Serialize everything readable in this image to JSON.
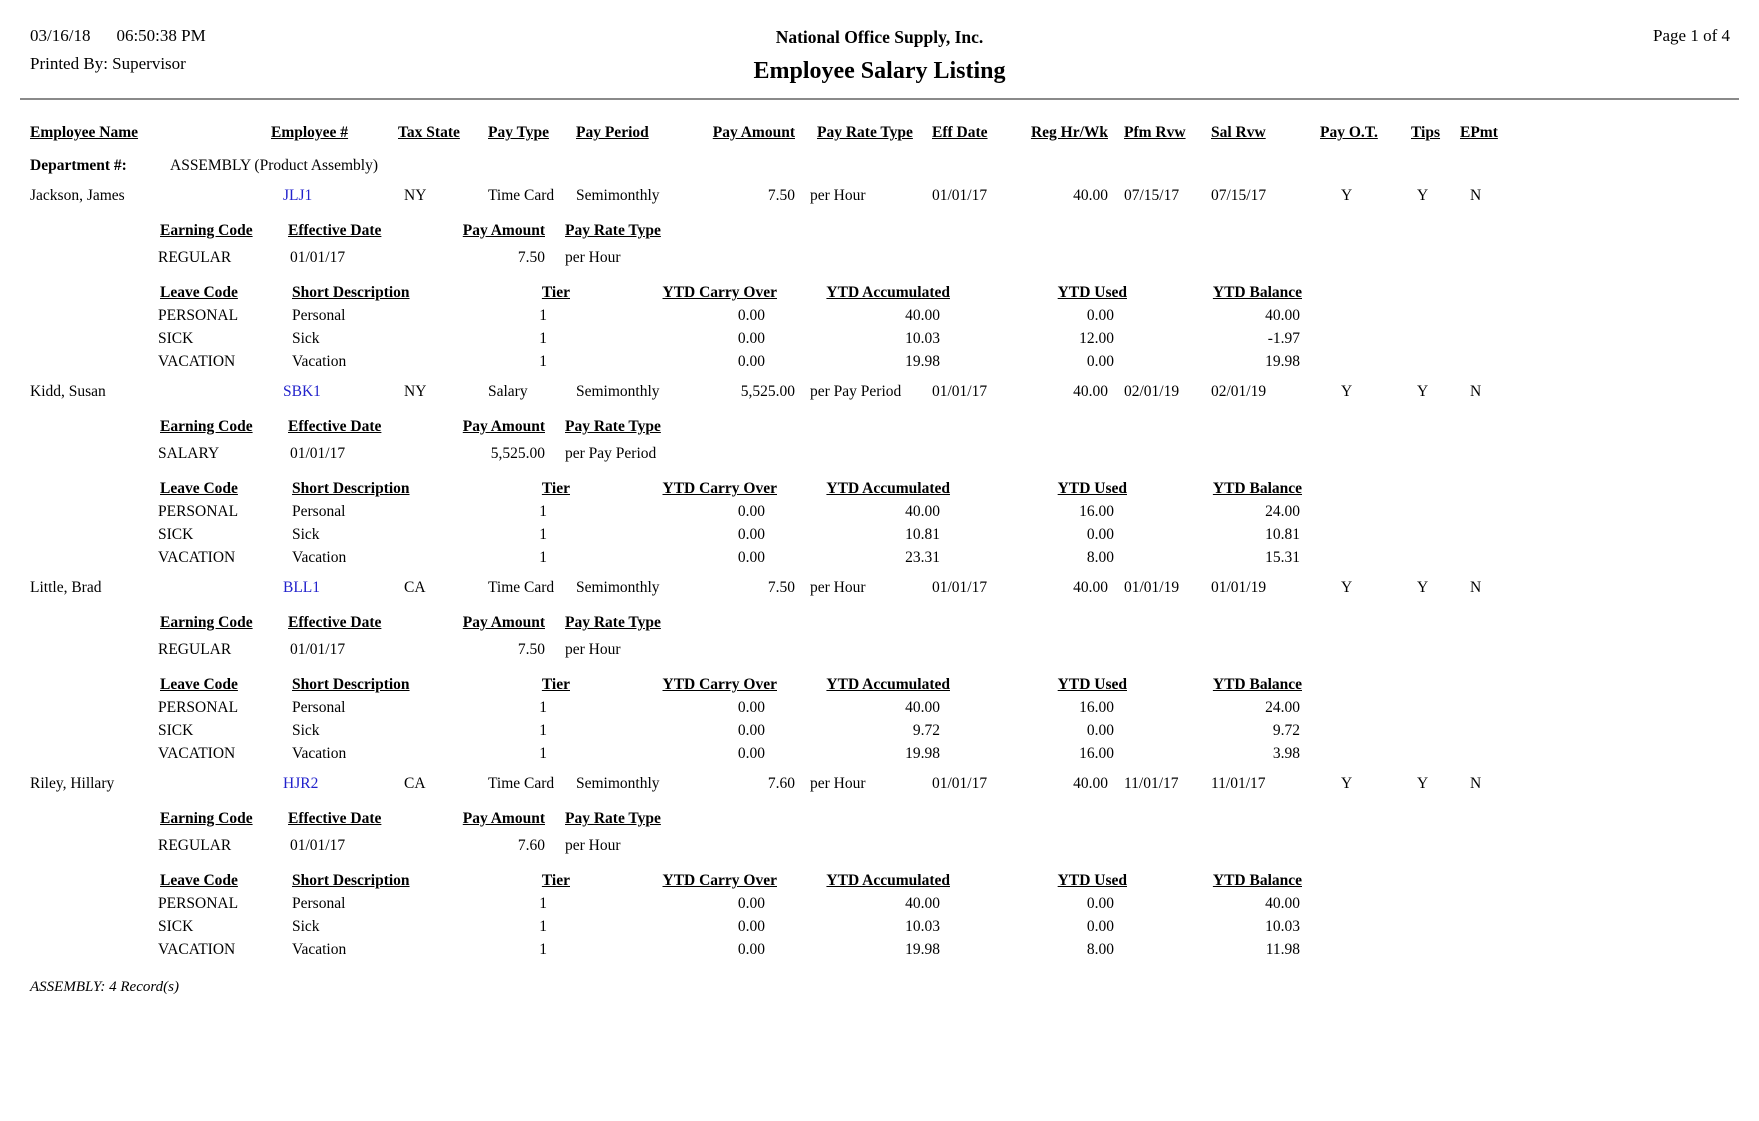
{
  "report": {
    "date": "03/16/18",
    "time": "06:50:38 PM",
    "printed_by": "Printed By: Supervisor",
    "company": "National Office Supply, Inc.",
    "title": "Employee Salary Listing",
    "page_label": "Page 1 of 4"
  },
  "columns": {
    "employee_name": "Employee Name",
    "employee_num": "Employee #",
    "tax_state": "Tax State",
    "pay_type": "Pay Type",
    "pay_period": "Pay Period",
    "pay_amount": "Pay Amount",
    "pay_rate_type": "Pay Rate Type",
    "eff_date": "Eff Date",
    "reg_hr_wk": "Reg Hr/Wk",
    "pfm_rvw": "Pfm Rvw",
    "sal_rvw": "Sal Rvw",
    "pay_ot": "Pay O.T.",
    "tips": "Tips",
    "epmt": "EPmt"
  },
  "earning_columns": {
    "code": "Earning Code",
    "effective_date": "Effective Date",
    "pay_amount": "Pay Amount",
    "pay_rate_type": "Pay Rate Type"
  },
  "leave_columns": {
    "code": "Leave Code",
    "description": "Short Description",
    "tier": "Tier",
    "ytd_carry_over": "YTD Carry Over",
    "ytd_accumulated": "YTD Accumulated",
    "ytd_used": "YTD Used",
    "ytd_balance": "YTD Balance"
  },
  "department": {
    "label": "Department #:",
    "value": "ASSEMBLY (Product Assembly)"
  },
  "employees": [
    {
      "name": "Jackson, James",
      "number": "JLJ1",
      "tax_state": "NY",
      "pay_type": "Time Card",
      "pay_period": "Semimonthly",
      "pay_amount": "7.50",
      "pay_rate_type": "per Hour",
      "eff_date": "01/01/17",
      "reg_hr_wk": "40.00",
      "pfm_rvw": "07/15/17",
      "sal_rvw": "07/15/17",
      "pay_ot": "Y",
      "tips": "Y",
      "epmt": "N",
      "earnings": [
        {
          "code": "REGULAR",
          "effective_date": "01/01/17",
          "pay_amount": "7.50",
          "pay_rate_type": "per Hour"
        }
      ],
      "leaves": [
        {
          "code": "PERSONAL",
          "description": "Personal",
          "tier": "1",
          "ytd_carry_over": "0.00",
          "ytd_accumulated": "40.00",
          "ytd_used": "0.00",
          "ytd_balance": "40.00"
        },
        {
          "code": "SICK",
          "description": "Sick",
          "tier": "1",
          "ytd_carry_over": "0.00",
          "ytd_accumulated": "10.03",
          "ytd_used": "12.00",
          "ytd_balance": "-1.97"
        },
        {
          "code": "VACATION",
          "description": "Vacation",
          "tier": "1",
          "ytd_carry_over": "0.00",
          "ytd_accumulated": "19.98",
          "ytd_used": "0.00",
          "ytd_balance": "19.98"
        }
      ]
    },
    {
      "name": "Kidd, Susan",
      "number": "SBK1",
      "tax_state": "NY",
      "pay_type": "Salary",
      "pay_period": "Semimonthly",
      "pay_amount": "5,525.00",
      "pay_rate_type": "per Pay Period",
      "eff_date": "01/01/17",
      "reg_hr_wk": "40.00",
      "pfm_rvw": "02/01/19",
      "sal_rvw": "02/01/19",
      "pay_ot": "Y",
      "tips": "Y",
      "epmt": "N",
      "earnings": [
        {
          "code": "SALARY",
          "effective_date": "01/01/17",
          "pay_amount": "5,525.00",
          "pay_rate_type": "per Pay Period"
        }
      ],
      "leaves": [
        {
          "code": "PERSONAL",
          "description": "Personal",
          "tier": "1",
          "ytd_carry_over": "0.00",
          "ytd_accumulated": "40.00",
          "ytd_used": "16.00",
          "ytd_balance": "24.00"
        },
        {
          "code": "SICK",
          "description": "Sick",
          "tier": "1",
          "ytd_carry_over": "0.00",
          "ytd_accumulated": "10.81",
          "ytd_used": "0.00",
          "ytd_balance": "10.81"
        },
        {
          "code": "VACATION",
          "description": "Vacation",
          "tier": "1",
          "ytd_carry_over": "0.00",
          "ytd_accumulated": "23.31",
          "ytd_used": "8.00",
          "ytd_balance": "15.31"
        }
      ]
    },
    {
      "name": "Little, Brad",
      "number": "BLL1",
      "tax_state": "CA",
      "pay_type": "Time Card",
      "pay_period": "Semimonthly",
      "pay_amount": "7.50",
      "pay_rate_type": "per Hour",
      "eff_date": "01/01/17",
      "reg_hr_wk": "40.00",
      "pfm_rvw": "01/01/19",
      "sal_rvw": "01/01/19",
      "pay_ot": "Y",
      "tips": "Y",
      "epmt": "N",
      "earnings": [
        {
          "code": "REGULAR",
          "effective_date": "01/01/17",
          "pay_amount": "7.50",
          "pay_rate_type": "per Hour"
        }
      ],
      "leaves": [
        {
          "code": "PERSONAL",
          "description": "Personal",
          "tier": "1",
          "ytd_carry_over": "0.00",
          "ytd_accumulated": "40.00",
          "ytd_used": "16.00",
          "ytd_balance": "24.00"
        },
        {
          "code": "SICK",
          "description": "Sick",
          "tier": "1",
          "ytd_carry_over": "0.00",
          "ytd_accumulated": "9.72",
          "ytd_used": "0.00",
          "ytd_balance": "9.72"
        },
        {
          "code": "VACATION",
          "description": "Vacation",
          "tier": "1",
          "ytd_carry_over": "0.00",
          "ytd_accumulated": "19.98",
          "ytd_used": "16.00",
          "ytd_balance": "3.98"
        }
      ]
    },
    {
      "name": "Riley, Hillary",
      "number": "HJR2",
      "tax_state": "CA",
      "pay_type": "Time Card",
      "pay_period": "Semimonthly",
      "pay_amount": "7.60",
      "pay_rate_type": "per Hour",
      "eff_date": "01/01/17",
      "reg_hr_wk": "40.00",
      "pfm_rvw": "11/01/17",
      "sal_rvw": "11/01/17",
      "pay_ot": "Y",
      "tips": "Y",
      "epmt": "N",
      "earnings": [
        {
          "code": "REGULAR",
          "effective_date": "01/01/17",
          "pay_amount": "7.60",
          "pay_rate_type": "per Hour"
        }
      ],
      "leaves": [
        {
          "code": "PERSONAL",
          "description": "Personal",
          "tier": "1",
          "ytd_carry_over": "0.00",
          "ytd_accumulated": "40.00",
          "ytd_used": "0.00",
          "ytd_balance": "40.00"
        },
        {
          "code": "SICK",
          "description": "Sick",
          "tier": "1",
          "ytd_carry_over": "0.00",
          "ytd_accumulated": "10.03",
          "ytd_used": "0.00",
          "ytd_balance": "10.03"
        },
        {
          "code": "VACATION",
          "description": "Vacation",
          "tier": "1",
          "ytd_carry_over": "0.00",
          "ytd_accumulated": "19.98",
          "ytd_used": "8.00",
          "ytd_balance": "11.98"
        }
      ]
    }
  ],
  "footer": {
    "summary": "ASSEMBLY: 4 Record(s)"
  },
  "colors": {
    "employee_link": "#2222cc",
    "divider": "#8a8a8a"
  }
}
